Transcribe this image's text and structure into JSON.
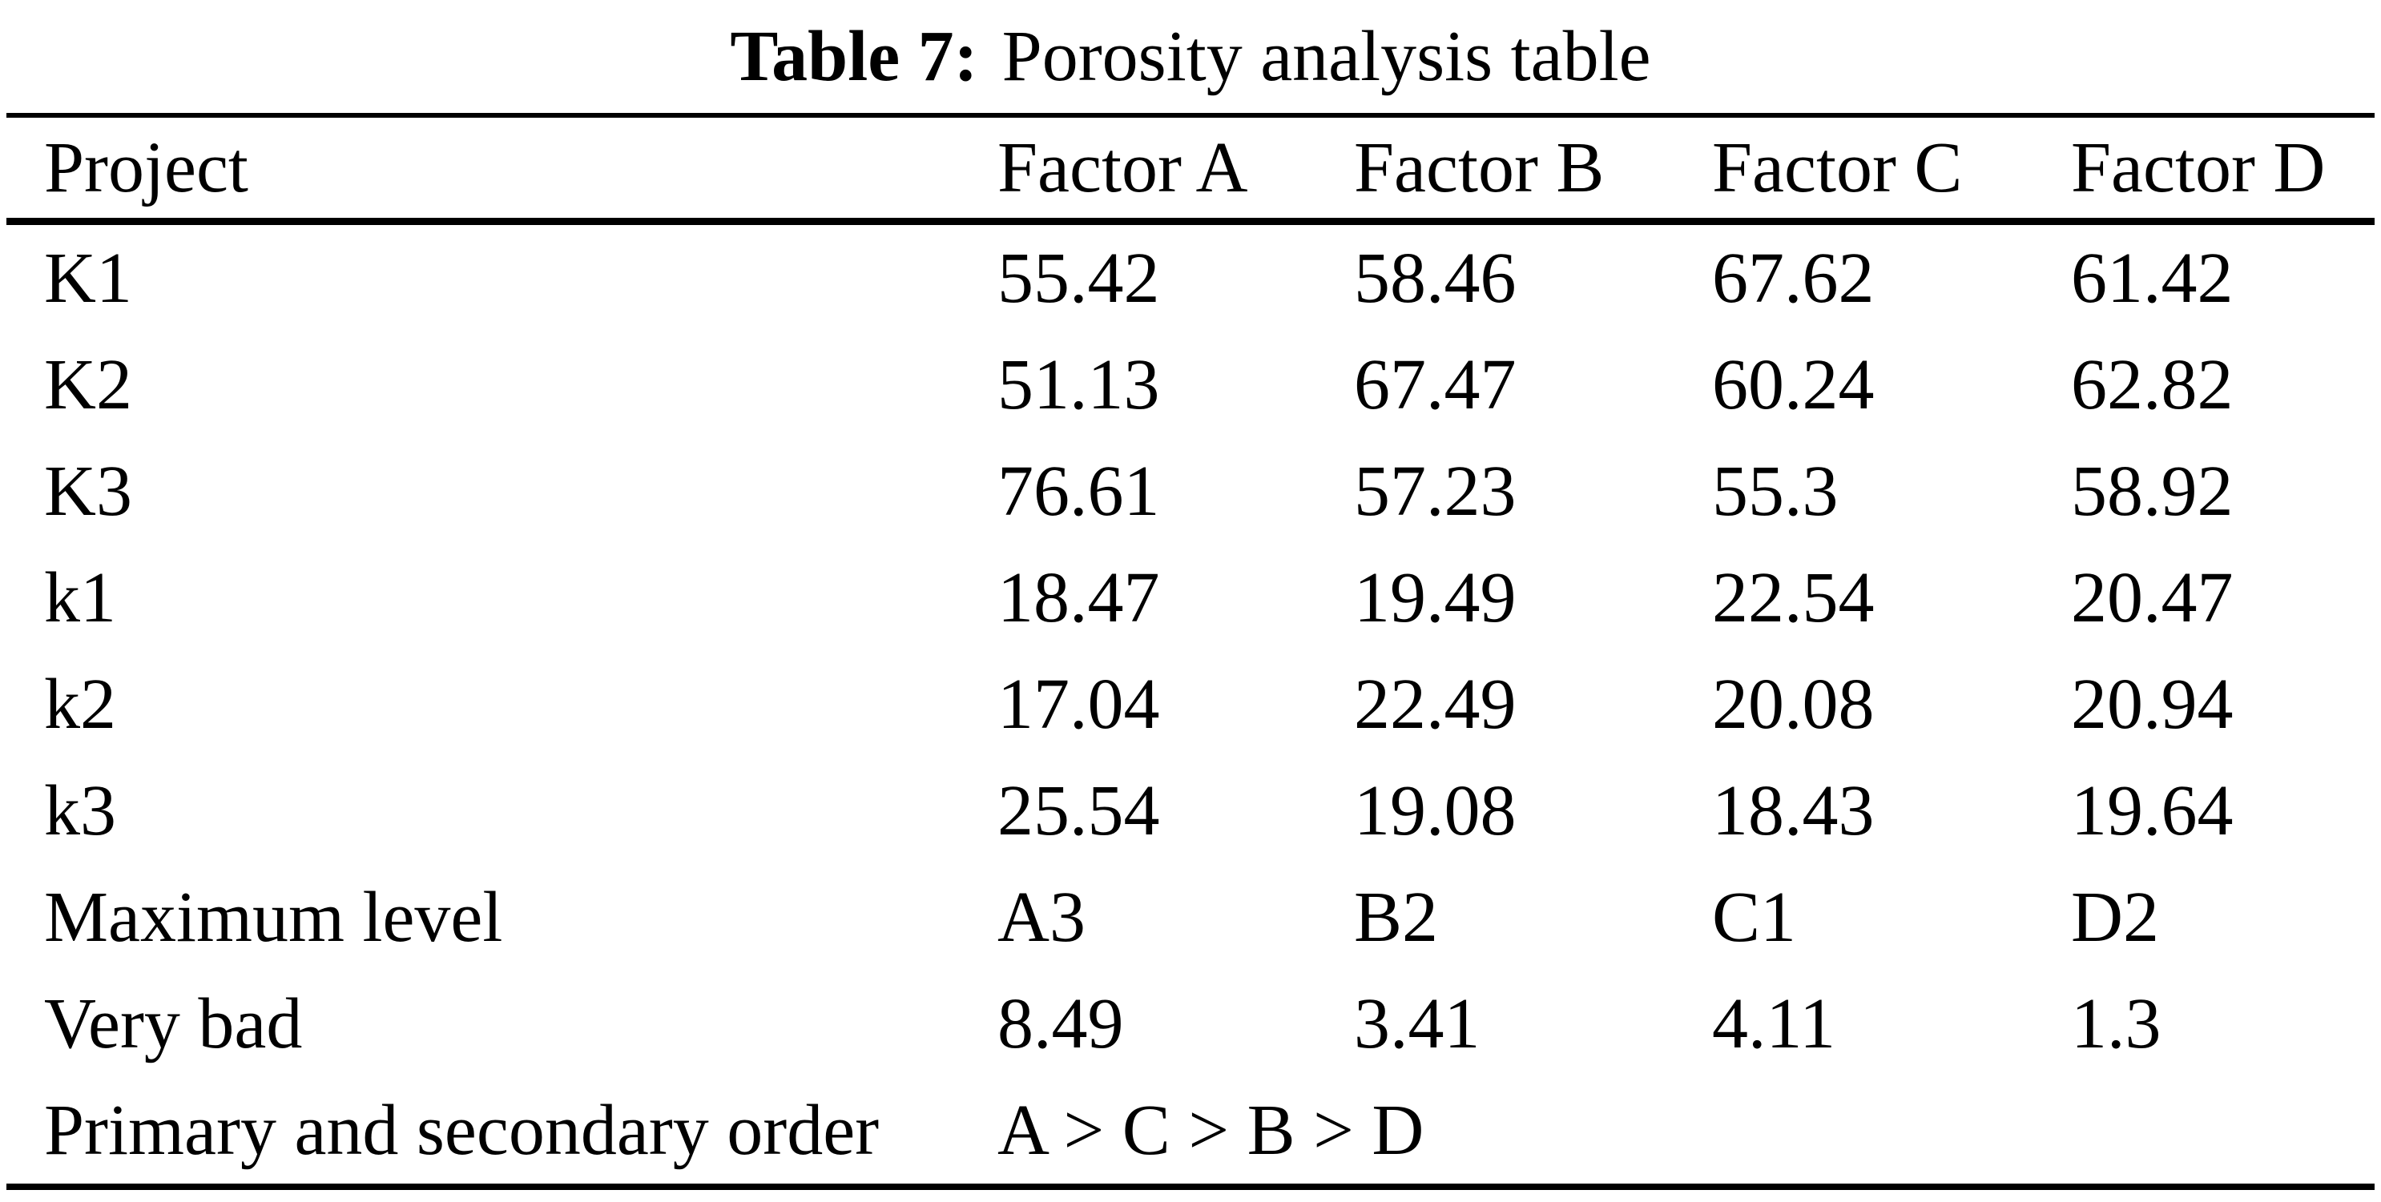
{
  "caption": {
    "label": "Table 7:",
    "text": "Porosity analysis table"
  },
  "table": {
    "headers": [
      "Project",
      "Factor A",
      "Factor B",
      "Factor C",
      "Factor D"
    ],
    "rows": [
      {
        "label": "K1",
        "values": [
          "55.42",
          "58.46",
          "67.62",
          "61.42"
        ]
      },
      {
        "label": "K2",
        "values": [
          "51.13",
          "67.47",
          "60.24",
          "62.82"
        ]
      },
      {
        "label": "K3",
        "values": [
          "76.61",
          "57.23",
          "55.3",
          "58.92"
        ]
      },
      {
        "label": "k1",
        "values": [
          "18.47",
          "19.49",
          "22.54",
          "20.47"
        ]
      },
      {
        "label": "k2",
        "values": [
          "17.04",
          "22.49",
          "20.08",
          "20.94"
        ]
      },
      {
        "label": "k3",
        "values": [
          "25.54",
          "19.08",
          "18.43",
          "19.64"
        ]
      },
      {
        "label": "Maximum level",
        "values": [
          "A3",
          "B2",
          "C1",
          "D2"
        ]
      },
      {
        "label": "Very bad",
        "values": [
          "8.49",
          "3.41",
          "4.11",
          "1.3"
        ]
      },
      {
        "label": "Primary and secondary order",
        "values": [
          "A > C > B > D",
          "",
          "",
          ""
        ]
      }
    ]
  },
  "colors": {
    "text": "#000000",
    "background": "#ffffff",
    "rule": "#000000"
  }
}
